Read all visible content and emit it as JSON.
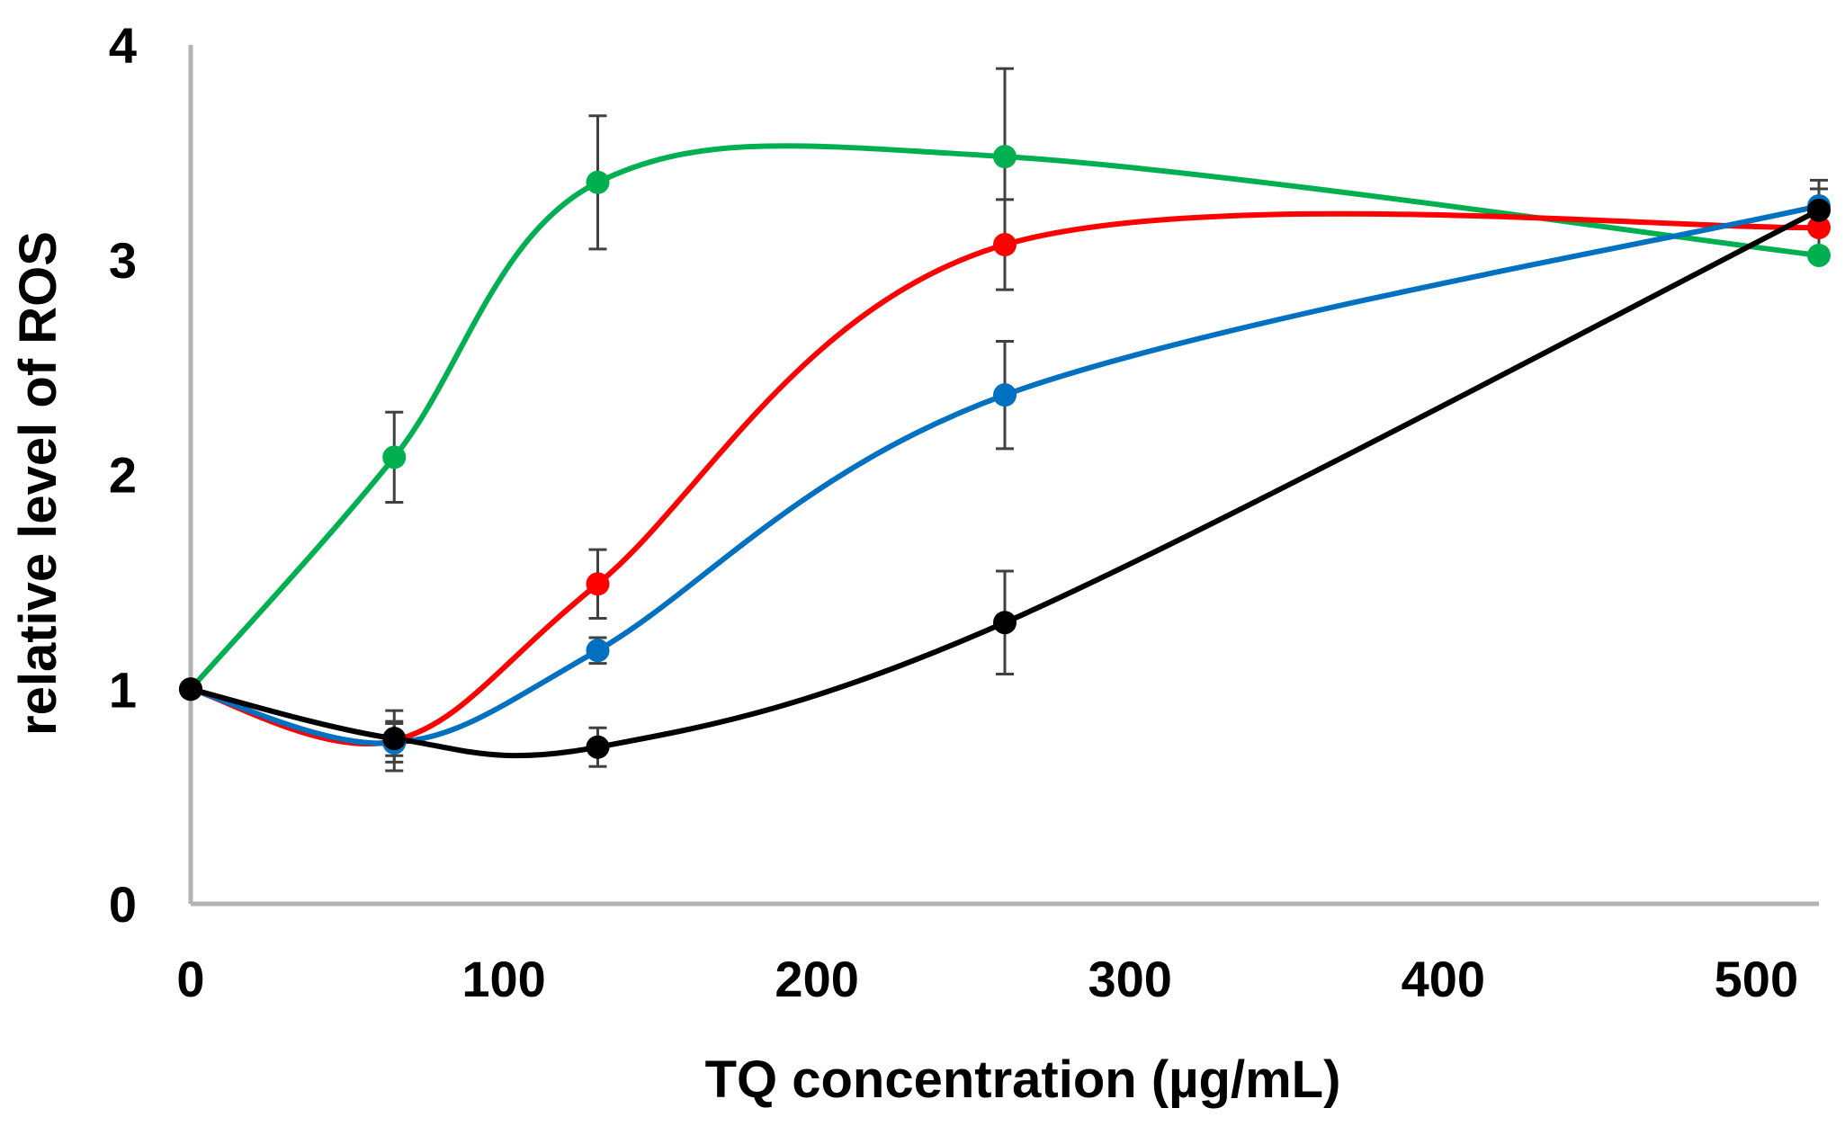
{
  "chart_data": {
    "type": "line",
    "title": "",
    "xlabel": "TQ concentration (µg/mL)",
    "ylabel": "relative level of ROS",
    "xlim": [
      0,
      520
    ],
    "ylim": [
      0,
      4
    ],
    "x_ticks": [
      0,
      100,
      200,
      300,
      400,
      500
    ],
    "y_ticks": [
      0,
      1,
      2,
      3,
      4
    ],
    "grid": false,
    "legend": "none",
    "x": [
      0,
      65,
      130,
      260,
      520
    ],
    "series": [
      {
        "name": "green",
        "color": "#00b050",
        "values": [
          1.0,
          2.08,
          3.36,
          3.48,
          3.02
        ],
        "errors": [
          0,
          0.21,
          0.31,
          0.41,
          0
        ]
      },
      {
        "name": "red",
        "color": "#ff0000",
        "values": [
          1.0,
          0.76,
          1.49,
          3.07,
          3.15
        ],
        "errors": [
          0,
          0.14,
          0.16,
          0.21,
          0.1
        ]
      },
      {
        "name": "blue",
        "color": "#0070c0",
        "values": [
          1.0,
          0.75,
          1.18,
          2.37,
          3.25
        ],
        "errors": [
          0,
          0.09,
          0.06,
          0.25,
          0.12
        ]
      },
      {
        "name": "black",
        "color": "#000000",
        "values": [
          1.0,
          0.77,
          0.73,
          1.31,
          3.23
        ],
        "errors": [
          0,
          0.08,
          0.09,
          0.24,
          0.1
        ]
      }
    ]
  }
}
